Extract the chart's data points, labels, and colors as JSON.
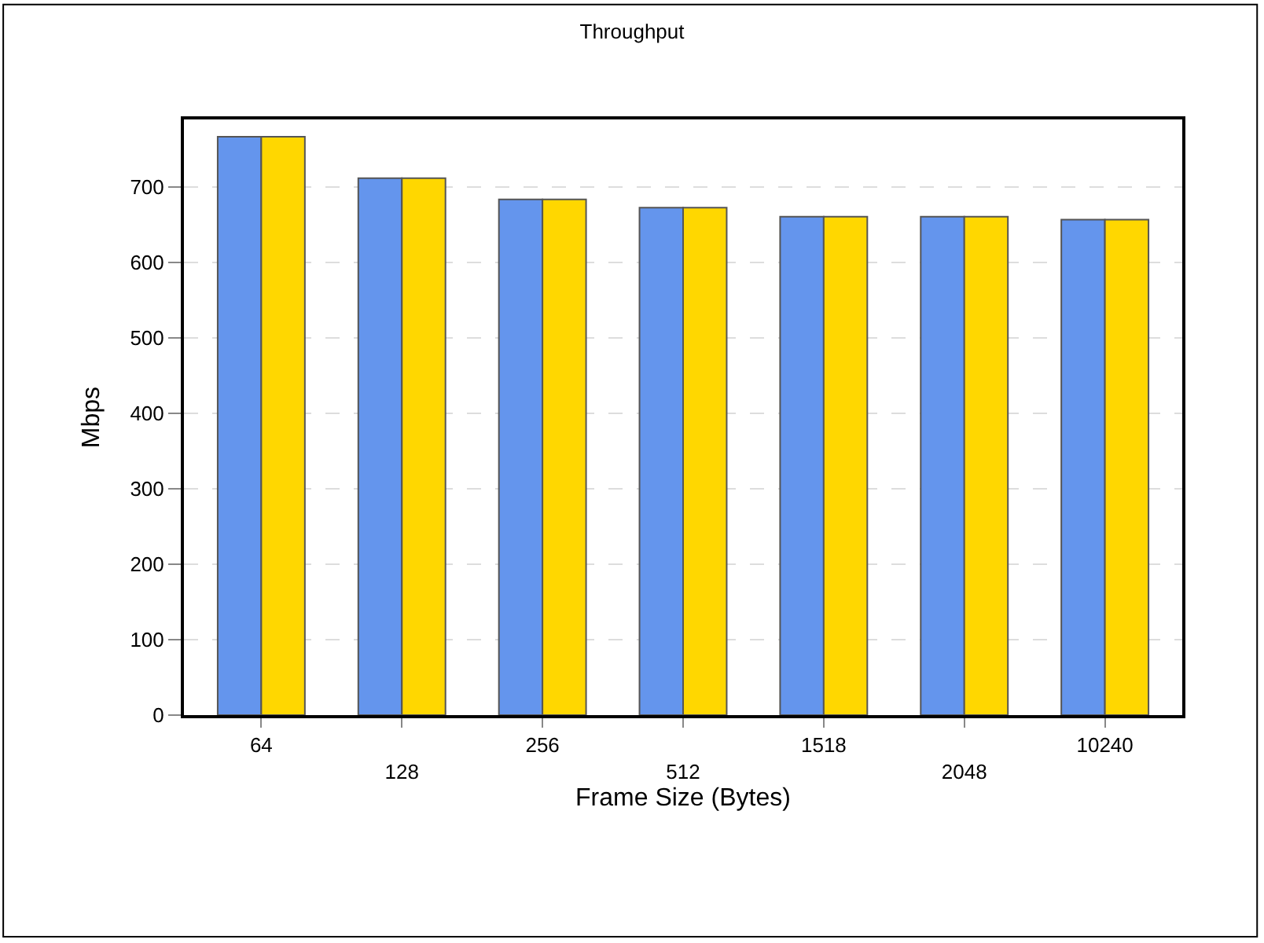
{
  "chart_data": {
    "type": "bar",
    "title": "Throughput",
    "xlabel": "Frame Size (Bytes)",
    "ylabel": "Mbps",
    "categories": [
      "64",
      "128",
      "256",
      "512",
      "1518",
      "2048",
      "10240"
    ],
    "series": [
      {
        "color": "#6495ed",
        "values": [
          767,
          712,
          684,
          673,
          661,
          661,
          657
        ]
      },
      {
        "color": "#ffd700",
        "values": [
          767,
          712,
          684,
          673,
          661,
          661,
          657
        ]
      }
    ],
    "ylim": [
      0,
      790
    ],
    "yticks": [
      0,
      100,
      200,
      300,
      400,
      500,
      600,
      700
    ],
    "grid": "y"
  }
}
